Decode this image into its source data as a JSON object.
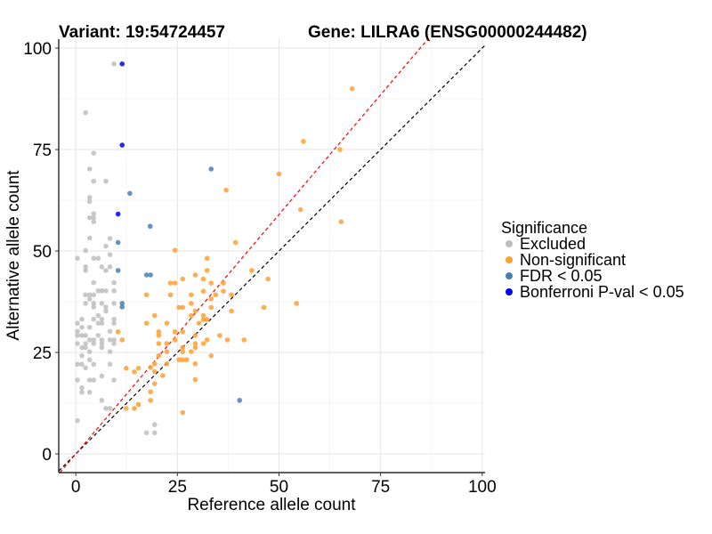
{
  "chart_data": {
    "type": "scatter",
    "title_left": "Variant: 19:54724457",
    "title_right": "Gene: LILRA6 (ENSG00000244482)",
    "xlabel": "Reference allele count",
    "ylabel": "Alternative allele count",
    "xlim": [
      -4.2,
      100.7
    ],
    "ylim": [
      -4.6,
      102.2
    ],
    "xticks": [
      "0",
      "25",
      "50",
      "75",
      "100"
    ],
    "yticks": [
      "0",
      "25",
      "50",
      "75",
      "100"
    ],
    "grid": true,
    "legend": {
      "title": "Significance",
      "placement": "right",
      "entries": [
        "Excluded",
        "Non-significant",
        "FDR < 0.05",
        "Bonferroni P-val < 0.05"
      ]
    },
    "reference_lines": [
      {
        "name": "identity",
        "slope": 1.0,
        "intercept": 0,
        "color": "#000000"
      },
      {
        "name": "expected-ratio",
        "slope": 1.18,
        "intercept": 0,
        "color": "#ff0000"
      }
    ],
    "colors": {
      "Excluded": "#bebebe",
      "Non-significant": "#ffa030",
      "FDR < 0.05": "#4a7fb5",
      "Bonferroni P-val < 0.05": "#0000ff"
    },
    "series": [
      {
        "name": "Excluded",
        "points": [
          [
            2.4,
            50.1
          ],
          [
            8.4,
            49.1
          ],
          [
            0.4,
            48.2
          ],
          [
            4.4,
            48.2
          ],
          [
            5.5,
            48.2
          ],
          [
            2.4,
            46.1
          ],
          [
            6.4,
            46.1
          ],
          [
            8.4,
            46.1
          ],
          [
            2.4,
            45.2
          ],
          [
            7.4,
            45.2
          ],
          [
            4.4,
            42.2
          ],
          [
            9.4,
            42.2
          ],
          [
            2.4,
            39.2
          ],
          [
            3.4,
            39.2
          ],
          [
            4.4,
            39.2
          ],
          [
            5.5,
            40.2
          ],
          [
            6.4,
            40.2
          ],
          [
            7.4,
            40.2
          ],
          [
            9.4,
            40.2
          ],
          [
            2.4,
            37.1
          ],
          [
            4.4,
            37.1
          ],
          [
            6.4,
            37.1
          ],
          [
            9.4,
            37.1
          ],
          [
            3.4,
            38.2
          ],
          [
            4.4,
            36.2
          ],
          [
            7.4,
            36.2
          ],
          [
            7.4,
            35.2
          ],
          [
            5.5,
            34.1
          ],
          [
            0.4,
            32.2
          ],
          [
            1.5,
            33.2
          ],
          [
            4.4,
            33.2
          ],
          [
            6.4,
            33.2
          ],
          [
            9.4,
            33.2
          ],
          [
            5.5,
            32.2
          ],
          [
            6.4,
            32.2
          ],
          [
            9.4,
            32.2
          ],
          [
            1.5,
            31.2
          ],
          [
            3.4,
            31.2
          ],
          [
            0.4,
            30.2
          ],
          [
            0.4,
            29.2
          ],
          [
            1.5,
            29.2
          ],
          [
            2.4,
            29.2
          ],
          [
            8.4,
            30.2
          ],
          [
            3.4,
            28.1
          ],
          [
            4.4,
            28.1
          ],
          [
            5.5,
            29.2
          ],
          [
            6.4,
            28.1
          ],
          [
            8.4,
            28.1
          ],
          [
            9.4,
            28.1
          ],
          [
            0.4,
            27.2
          ],
          [
            2.4,
            27.2
          ],
          [
            4.4,
            27.2
          ],
          [
            6.4,
            27.2
          ],
          [
            9.4,
            27.2
          ],
          [
            1.5,
            26.2
          ],
          [
            2.4,
            26.2
          ],
          [
            6.4,
            26.2
          ],
          [
            3.4,
            25.2
          ],
          [
            8.4,
            25.2
          ],
          [
            1.5,
            24.2
          ],
          [
            3.4,
            23.2
          ],
          [
            0.4,
            22.1
          ],
          [
            1.5,
            22.1
          ],
          [
            4.4,
            22.1
          ],
          [
            8.4,
            22.1
          ],
          [
            2.4,
            21.2
          ],
          [
            6.4,
            19.2
          ],
          [
            0.4,
            18.2
          ],
          [
            3.4,
            18.2
          ],
          [
            4.4,
            18.2
          ],
          [
            9.4,
            18.2
          ],
          [
            1.5,
            16.3
          ],
          [
            1.5,
            15.2
          ],
          [
            3.4,
            15.2
          ],
          [
            6.4,
            13.2
          ],
          [
            7.4,
            11.2
          ],
          [
            8.4,
            11.2
          ],
          [
            0.4,
            8.2
          ],
          [
            17.4,
            5.2
          ],
          [
            19.4,
            5.2
          ],
          [
            19.4,
            7.2
          ],
          [
            9.4,
            96.1
          ],
          [
            2.4,
            84.1
          ],
          [
            4.4,
            74.1
          ],
          [
            3.4,
            70.2
          ],
          [
            4.4,
            67.2
          ],
          [
            7.4,
            67.2
          ],
          [
            3.4,
            63.2
          ],
          [
            3.4,
            62.2
          ],
          [
            4.4,
            59.2
          ],
          [
            3.4,
            58.2
          ],
          [
            4.4,
            58.2
          ],
          [
            4.4,
            57.2
          ],
          [
            3.4,
            53.2
          ],
          [
            8.4,
            53.1
          ],
          [
            7.4,
            51.2
          ]
        ]
      },
      {
        "name": "Non-significant",
        "points": [
          [
            68,
            90
          ],
          [
            56,
            77
          ],
          [
            50,
            69
          ],
          [
            65,
            75
          ],
          [
            37,
            65
          ],
          [
            65.3,
            57.2
          ],
          [
            55.3,
            60.2
          ],
          [
            39.3,
            52.1
          ],
          [
            24.4,
            50.2
          ],
          [
            32.3,
            48.2
          ],
          [
            32.3,
            45.2
          ],
          [
            43.3,
            45.2
          ],
          [
            29.4,
            44.1
          ],
          [
            26.3,
            43.1
          ],
          [
            31.4,
            43.1
          ],
          [
            47.3,
            43.1
          ],
          [
            23.3,
            42.1
          ],
          [
            24.4,
            42.1
          ],
          [
            33.3,
            42.1
          ],
          [
            36.3,
            42.1
          ],
          [
            31.4,
            40.1
          ],
          [
            36.3,
            40.1
          ],
          [
            17.4,
            39.2
          ],
          [
            23.3,
            39.2
          ],
          [
            28.4,
            39.2
          ],
          [
            34.4,
            39.2
          ],
          [
            38.3,
            39.2
          ],
          [
            33.3,
            38.2
          ],
          [
            54.3,
            37.1
          ],
          [
            28.4,
            37.1
          ],
          [
            25.4,
            36.1
          ],
          [
            26.3,
            36.1
          ],
          [
            33.3,
            36.1
          ],
          [
            46.3,
            36.1
          ],
          [
            38.3,
            35.2
          ],
          [
            29.4,
            35.2
          ],
          [
            19.4,
            34.1
          ],
          [
            28.4,
            34.1
          ],
          [
            31.4,
            34.1
          ],
          [
            31.4,
            33.1
          ],
          [
            32.3,
            33.1
          ],
          [
            17.4,
            32.2
          ],
          [
            22.4,
            32.2
          ],
          [
            30.3,
            32.2
          ],
          [
            20.4,
            30.1
          ],
          [
            24.4,
            30.1
          ],
          [
            26.3,
            30.1
          ],
          [
            20.4,
            29.2
          ],
          [
            29.4,
            29.2
          ],
          [
            35.4,
            29.2
          ],
          [
            20.4,
            27.2
          ],
          [
            22.4,
            27.2
          ],
          [
            24.4,
            28.1
          ],
          [
            32.3,
            28.1
          ],
          [
            37.3,
            28.1
          ],
          [
            41.4,
            28.1
          ],
          [
            29.4,
            27.2
          ],
          [
            31.4,
            27.2
          ],
          [
            29.4,
            26.2
          ],
          [
            26.3,
            26.2
          ],
          [
            22.4,
            25.2
          ],
          [
            26.3,
            25.2
          ],
          [
            28.4,
            25.2
          ],
          [
            20.4,
            24.2
          ],
          [
            33.3,
            24.2
          ],
          [
            25.4,
            23.2
          ],
          [
            26.3,
            23.2
          ],
          [
            27.3,
            23.2
          ],
          [
            19.4,
            22.2
          ],
          [
            22.4,
            22.2
          ],
          [
            29.4,
            22.2
          ],
          [
            18.4,
            21.3
          ],
          [
            19.4,
            20.3
          ],
          [
            21.4,
            19.3
          ],
          [
            29.4,
            18.3
          ],
          [
            19.4,
            17.3
          ],
          [
            18.4,
            15.3
          ],
          [
            26.3,
            10.2
          ],
          [
            10.4,
            30.1
          ],
          [
            11.4,
            28.1
          ],
          [
            12.4,
            21.1
          ],
          [
            14.4,
            20.2
          ],
          [
            15.4,
            21.1
          ],
          [
            12.4,
            11.2
          ],
          [
            14.4,
            11.2
          ],
          [
            15.4,
            12.2
          ],
          [
            18.4,
            13.2
          ]
        ]
      },
      {
        "name": "FDR < 0.05",
        "points": [
          [
            33.3,
            70.2
          ],
          [
            13.3,
            64.2
          ],
          [
            18.3,
            56.1
          ],
          [
            10.4,
            52.1
          ],
          [
            10.4,
            45.2
          ],
          [
            17.4,
            44.1
          ],
          [
            18.4,
            44.1
          ],
          [
            11.4,
            37.1
          ],
          [
            11.4,
            36.2
          ],
          [
            40.3,
            13.2
          ]
        ]
      },
      {
        "name": "Bonferroni P-val < 0.05",
        "points": [
          [
            11.4,
            96.1
          ],
          [
            11.4,
            76.1
          ],
          [
            10.4,
            59.1
          ]
        ]
      }
    ]
  }
}
